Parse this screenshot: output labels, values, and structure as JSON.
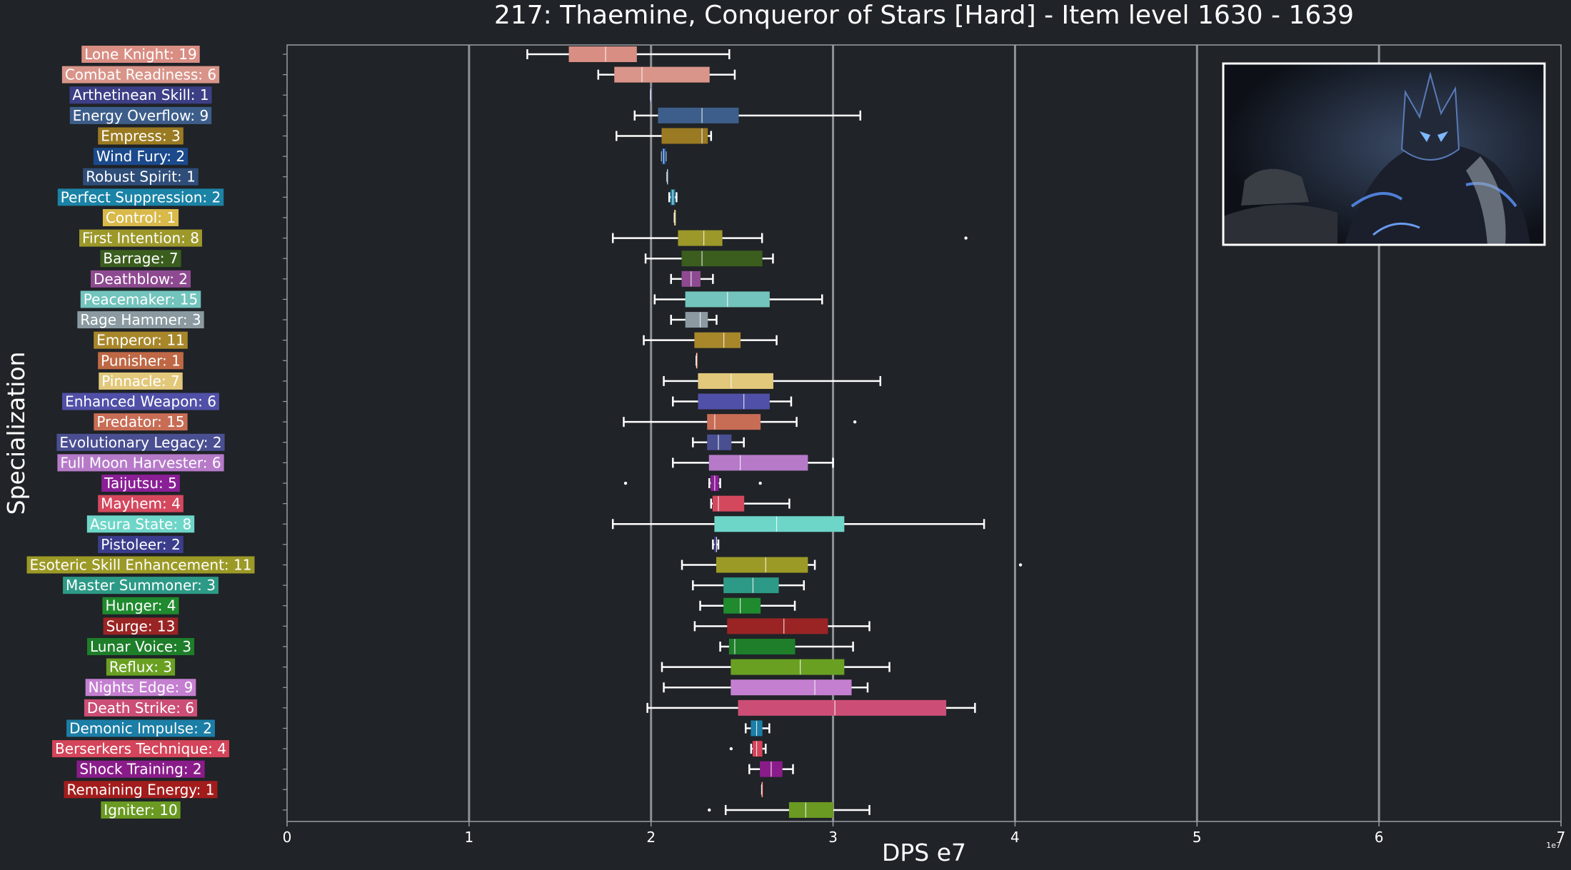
{
  "chart_data": {
    "type": "box",
    "title": "217: Thaemine, Conqueror of Stars [Hard] - Item level 1630 - 1639",
    "xlabel": "DPS e7",
    "ylabel": "Specialization",
    "xlim": [
      0,
      7
    ],
    "xticks": [
      "0",
      "1",
      "2",
      "3",
      "4",
      "5",
      "6",
      "7"
    ],
    "x_offset_label": "1e7",
    "grid": "vertical lines at major x ticks",
    "inset_image": "boss portrait (top-right)",
    "categories": [
      {
        "label": "Lone Knight: 19",
        "color": "#d98e84",
        "whislo": 1.32,
        "q1": 1.55,
        "med": 1.75,
        "q3": 1.92,
        "whishi": 2.43,
        "fliers": []
      },
      {
        "label": "Combat Readiness: 6",
        "color": "#d9958a",
        "whislo": 1.71,
        "q1": 1.8,
        "med": 1.95,
        "q3": 2.32,
        "whishi": 2.46,
        "fliers": []
      },
      {
        "label": "Arthetinean Skill: 1",
        "color": "#3d3f86",
        "whislo": 2.0,
        "q1": 2.0,
        "med": 2.0,
        "q3": 2.0,
        "whishi": 2.0,
        "fliers": []
      },
      {
        "label": "Energy Overflow: 9",
        "color": "#3d5e8a",
        "whislo": 1.91,
        "q1": 2.04,
        "med": 2.28,
        "q3": 2.48,
        "whishi": 3.15,
        "fliers": []
      },
      {
        "label": "Empress: 3",
        "color": "#9a7a22",
        "whislo": 1.81,
        "q1": 2.06,
        "med": 2.28,
        "q3": 2.31,
        "whishi": 2.33,
        "fliers": []
      },
      {
        "label": "Wind Fury: 2",
        "color": "#1b4a8c",
        "whislo": 2.06,
        "q1": 2.06,
        "med": 2.07,
        "q3": 2.08,
        "whishi": 2.08,
        "fliers": []
      },
      {
        "label": "Robust Spirit: 1",
        "color": "#2e4d78",
        "whislo": 2.09,
        "q1": 2.09,
        "med": 2.09,
        "q3": 2.09,
        "whishi": 2.09,
        "fliers": []
      },
      {
        "label": "Perfect Suppression: 2",
        "color": "#1b83a6",
        "whislo": 2.1,
        "q1": 2.11,
        "med": 2.12,
        "q3": 2.13,
        "whishi": 2.14,
        "fliers": []
      },
      {
        "label": "Control: 1",
        "color": "#d8b94a",
        "whislo": 2.13,
        "q1": 2.13,
        "med": 2.13,
        "q3": 2.13,
        "whishi": 2.13,
        "fliers": []
      },
      {
        "label": "First Intention: 8",
        "color": "#9c982a",
        "whislo": 1.79,
        "q1": 2.15,
        "med": 2.29,
        "q3": 2.39,
        "whishi": 2.61,
        "fliers": [
          3.73
        ]
      },
      {
        "label": "Barrage: 7",
        "color": "#3b5e1e",
        "whislo": 1.97,
        "q1": 2.17,
        "med": 2.28,
        "q3": 2.61,
        "whishi": 2.67,
        "fliers": []
      },
      {
        "label": "Deathblow: 2",
        "color": "#8e4a91",
        "whislo": 2.11,
        "q1": 2.17,
        "med": 2.22,
        "q3": 2.27,
        "whishi": 2.34,
        "fliers": []
      },
      {
        "label": "Peacemaker: 15",
        "color": "#72c4bd",
        "whislo": 2.02,
        "q1": 2.19,
        "med": 2.42,
        "q3": 2.65,
        "whishi": 2.94,
        "fliers": []
      },
      {
        "label": "Rage Hammer: 3",
        "color": "#8a9aa0",
        "whislo": 2.11,
        "q1": 2.19,
        "med": 2.27,
        "q3": 2.31,
        "whishi": 2.36,
        "fliers": []
      },
      {
        "label": "Emperor: 11",
        "color": "#a8872a",
        "whislo": 1.96,
        "q1": 2.24,
        "med": 2.4,
        "q3": 2.49,
        "whishi": 2.69,
        "fliers": []
      },
      {
        "label": "Punisher: 1",
        "color": "#bf6845",
        "whislo": 2.25,
        "q1": 2.25,
        "med": 2.25,
        "q3": 2.25,
        "whishi": 2.25,
        "fliers": []
      },
      {
        "label": "Pinnacle: 7",
        "color": "#e2c87a",
        "whislo": 2.07,
        "q1": 2.26,
        "med": 2.44,
        "q3": 2.67,
        "whishi": 3.26,
        "fliers": []
      },
      {
        "label": "Enhanced Weapon: 6",
        "color": "#5050a8",
        "whislo": 2.12,
        "q1": 2.26,
        "med": 2.51,
        "q3": 2.65,
        "whishi": 2.77,
        "fliers": []
      },
      {
        "label": "Predator: 15",
        "color": "#c86d55",
        "whislo": 1.85,
        "q1": 2.31,
        "med": 2.35,
        "q3": 2.6,
        "whishi": 2.8,
        "fliers": [
          3.12
        ]
      },
      {
        "label": "Evolutionary Legacy: 2",
        "color": "#4a4f92",
        "whislo": 2.23,
        "q1": 2.31,
        "med": 2.37,
        "q3": 2.44,
        "whishi": 2.51,
        "fliers": []
      },
      {
        "label": "Full Moon Harvester: 6",
        "color": "#b67ac9",
        "whislo": 2.12,
        "q1": 2.32,
        "med": 2.49,
        "q3": 2.86,
        "whishi": 3.0,
        "fliers": []
      },
      {
        "label": "Taijutsu: 5",
        "color": "#8a1f96",
        "whislo": 2.32,
        "q1": 2.33,
        "med": 2.35,
        "q3": 2.37,
        "whishi": 2.38,
        "fliers": [
          1.86,
          2.6
        ]
      },
      {
        "label": "Mayhem: 4",
        "color": "#d4485e",
        "whislo": 2.33,
        "q1": 2.34,
        "med": 2.37,
        "q3": 2.51,
        "whishi": 2.76,
        "fliers": []
      },
      {
        "label": "Asura State: 8",
        "color": "#6dd6c8",
        "whislo": 1.79,
        "q1": 2.35,
        "med": 2.69,
        "q3": 3.06,
        "whishi": 3.83,
        "fliers": []
      },
      {
        "label": "Pistoleer: 2",
        "color": "#3b3d8c",
        "whislo": 2.34,
        "q1": 2.35,
        "med": 2.36,
        "q3": 2.36,
        "whishi": 2.37,
        "fliers": []
      },
      {
        "label": "Esoteric Skill Enhancement: 11",
        "color": "#9c9a26",
        "whislo": 2.17,
        "q1": 2.36,
        "med": 2.63,
        "q3": 2.86,
        "whishi": 2.9,
        "fliers": [
          4.03
        ]
      },
      {
        "label": "Master Summoner: 3",
        "color": "#2c9a86",
        "whislo": 2.23,
        "q1": 2.4,
        "med": 2.56,
        "q3": 2.7,
        "whishi": 2.84,
        "fliers": []
      },
      {
        "label": "Hunger: 4",
        "color": "#1f8a2e",
        "whislo": 2.27,
        "q1": 2.4,
        "med": 2.49,
        "q3": 2.6,
        "whishi": 2.79,
        "fliers": []
      },
      {
        "label": "Surge: 13",
        "color": "#9a2424",
        "whislo": 2.24,
        "q1": 2.42,
        "med": 2.73,
        "q3": 2.97,
        "whishi": 3.2,
        "fliers": []
      },
      {
        "label": "Lunar Voice: 3",
        "color": "#1e7e2a",
        "whislo": 2.38,
        "q1": 2.43,
        "med": 2.46,
        "q3": 2.79,
        "whishi": 3.11,
        "fliers": []
      },
      {
        "label": "Reflux: 3",
        "color": "#6aa022",
        "whislo": 2.06,
        "q1": 2.44,
        "med": 2.82,
        "q3": 3.06,
        "whishi": 3.31,
        "fliers": []
      },
      {
        "label": "Nights Edge: 9",
        "color": "#c47fd0",
        "whislo": 2.07,
        "q1": 2.44,
        "med": 2.9,
        "q3": 3.1,
        "whishi": 3.19,
        "fliers": []
      },
      {
        "label": "Death Strike: 6",
        "color": "#cc4e76",
        "whislo": 1.98,
        "q1": 2.48,
        "med": 3.01,
        "q3": 3.62,
        "whishi": 3.78,
        "fliers": []
      },
      {
        "label": "Demonic Impulse: 2",
        "color": "#1b7ea6",
        "whislo": 2.52,
        "q1": 2.55,
        "med": 2.58,
        "q3": 2.61,
        "whishi": 2.65,
        "fliers": []
      },
      {
        "label": "Berserkers Technique: 4",
        "color": "#d4445a",
        "whislo": 2.55,
        "q1": 2.56,
        "med": 2.58,
        "q3": 2.61,
        "whishi": 2.63,
        "fliers": [
          2.44
        ]
      },
      {
        "label": "Shock Training: 2",
        "color": "#8a1c8a",
        "whislo": 2.54,
        "q1": 2.6,
        "med": 2.66,
        "q3": 2.72,
        "whishi": 2.78,
        "fliers": []
      },
      {
        "label": "Remaining Energy: 1",
        "color": "#a31c1c",
        "whislo": 2.61,
        "q1": 2.61,
        "med": 2.61,
        "q3": 2.61,
        "whishi": 2.61,
        "fliers": []
      },
      {
        "label": "Igniter: 10",
        "color": "#6a9a22",
        "whislo": 2.41,
        "q1": 2.76,
        "med": 2.85,
        "q3": 3.0,
        "whishi": 3.2,
        "fliers": [
          2.32
        ]
      }
    ]
  },
  "colors": {
    "background": "#202327",
    "axes_face": "#202327",
    "grid": "#8e9296",
    "text": "#ffffff",
    "whisker": "#ffffff"
  }
}
